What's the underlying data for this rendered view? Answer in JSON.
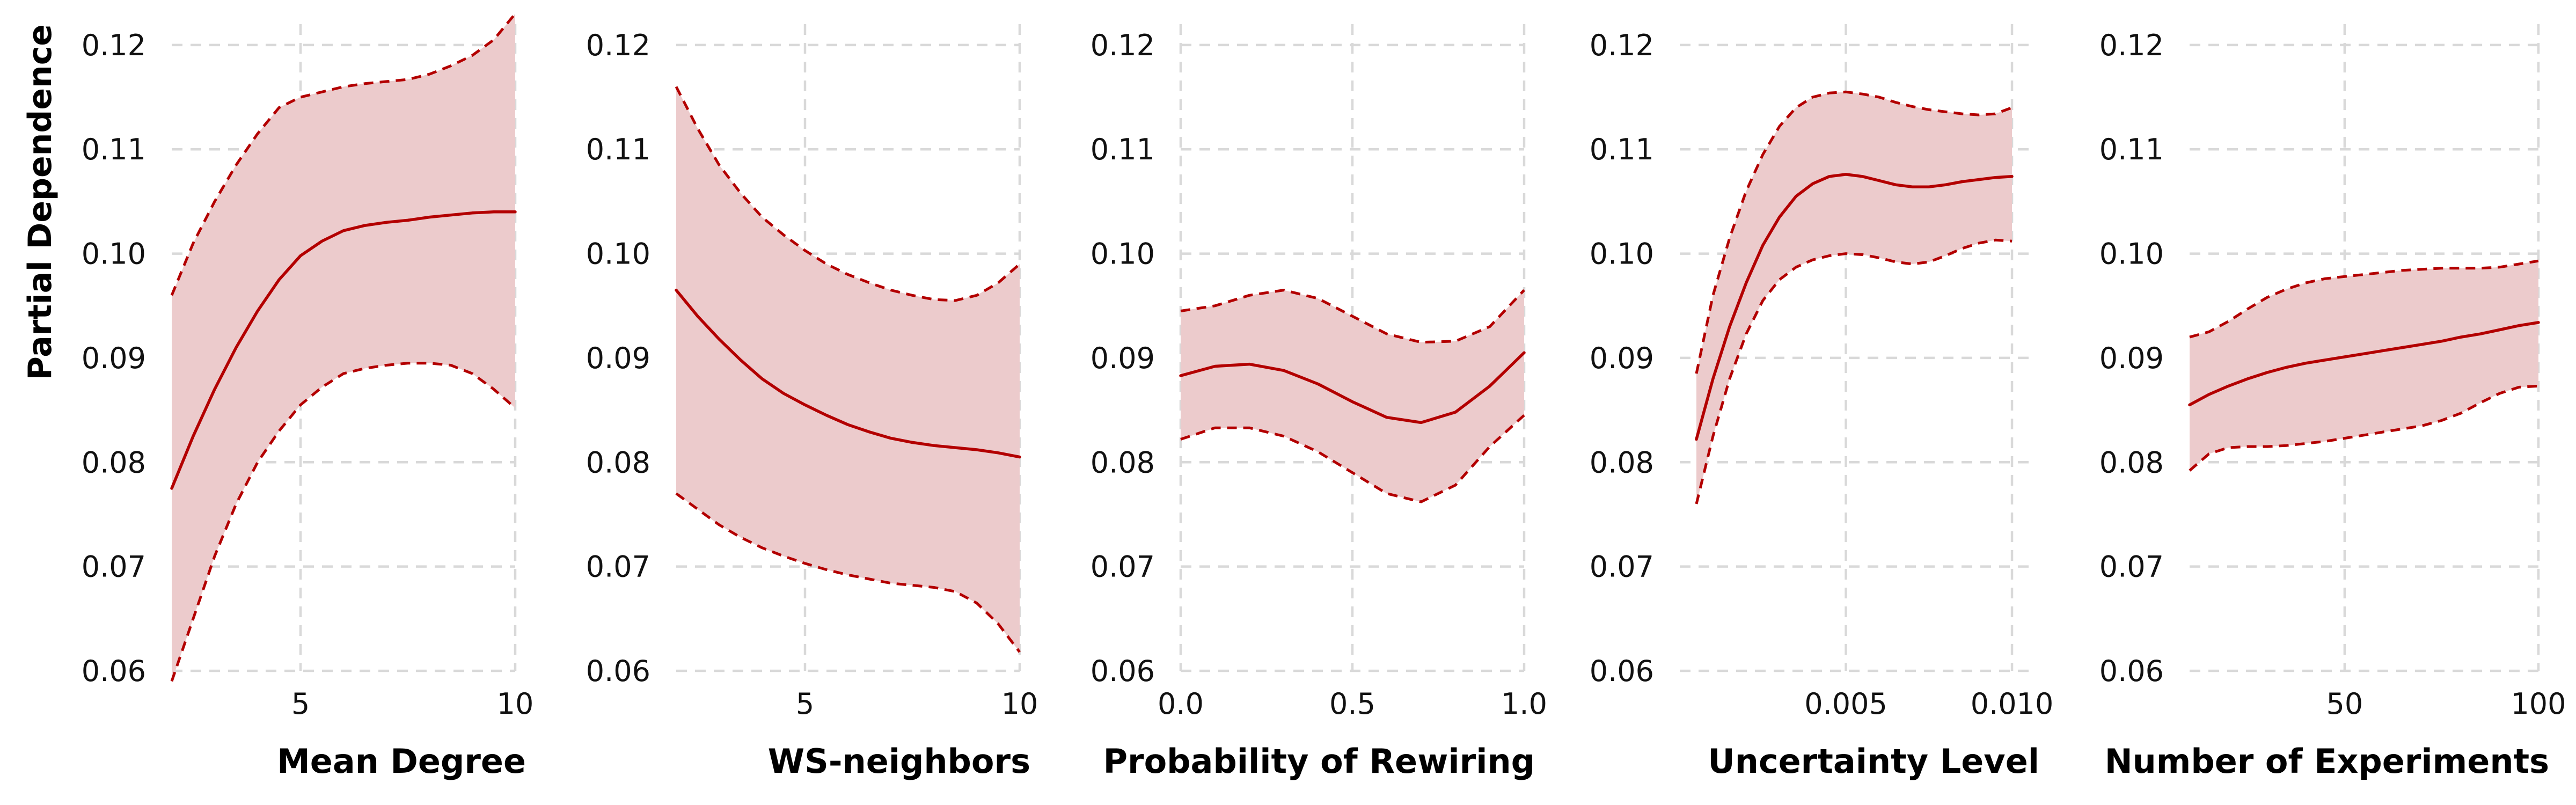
{
  "chart_data": [
    {
      "type": "line",
      "xlabel": "Mean Degree",
      "ylabel": "Partial Dependence",
      "xlim": [
        2,
        10
      ],
      "ylim": [
        0.06,
        0.122
      ],
      "xticks": [
        5,
        10
      ],
      "xtick_labels": [
        "5",
        "10"
      ],
      "yticks": [
        0.06,
        0.07,
        0.08,
        0.09,
        0.1,
        0.11,
        0.12
      ],
      "ytick_labels": [
        "0.06",
        "0.07",
        "0.08",
        "0.09",
        "0.10",
        "0.11",
        "0.12"
      ],
      "grid": true,
      "x": [
        2.0,
        2.5,
        3.0,
        3.5,
        4.0,
        4.5,
        5.0,
        5.5,
        6.0,
        6.5,
        7.0,
        7.5,
        8.0,
        8.5,
        9.0,
        9.5,
        10.0
      ],
      "mean": [
        0.0775,
        0.0825,
        0.087,
        0.091,
        0.0945,
        0.0975,
        0.0998,
        0.1012,
        0.1022,
        0.1027,
        0.103,
        0.1032,
        0.1035,
        0.1037,
        0.1039,
        0.104,
        0.104
      ],
      "lower": [
        0.059,
        0.065,
        0.071,
        0.076,
        0.08,
        0.083,
        0.0855,
        0.0872,
        0.0885,
        0.089,
        0.0893,
        0.0895,
        0.0895,
        0.0893,
        0.0885,
        0.087,
        0.0852
      ],
      "upper": [
        0.096,
        0.101,
        0.105,
        0.1085,
        0.1115,
        0.114,
        0.115,
        0.1155,
        0.116,
        0.1163,
        0.1165,
        0.1167,
        0.1172,
        0.118,
        0.119,
        0.1205,
        0.123
      ]
    },
    {
      "type": "line",
      "xlabel": "WS-neighbors",
      "ylabel": "",
      "xlim": [
        2,
        10
      ],
      "ylim": [
        0.06,
        0.122
      ],
      "xticks": [
        5,
        10
      ],
      "xtick_labels": [
        "5",
        "10"
      ],
      "yticks": [
        0.06,
        0.07,
        0.08,
        0.09,
        0.1,
        0.11,
        0.12
      ],
      "ytick_labels": [
        "0.06",
        "0.07",
        "0.08",
        "0.09",
        "0.10",
        "0.11",
        "0.12"
      ],
      "grid": true,
      "x": [
        2.0,
        2.5,
        3.0,
        3.5,
        4.0,
        4.5,
        5.0,
        5.5,
        6.0,
        6.5,
        7.0,
        7.5,
        8.0,
        8.5,
        9.0,
        9.5,
        10.0
      ],
      "mean": [
        0.0965,
        0.094,
        0.0918,
        0.0898,
        0.088,
        0.0866,
        0.0855,
        0.0845,
        0.0836,
        0.0829,
        0.0823,
        0.0819,
        0.0816,
        0.0814,
        0.0812,
        0.0809,
        0.0805
      ],
      "lower": [
        0.077,
        0.0755,
        0.074,
        0.0728,
        0.0718,
        0.071,
        0.0703,
        0.0697,
        0.0692,
        0.0688,
        0.0684,
        0.0682,
        0.068,
        0.0676,
        0.0665,
        0.0645,
        0.0618
      ],
      "upper": [
        0.116,
        0.112,
        0.1085,
        0.1058,
        0.1035,
        0.1018,
        0.1003,
        0.099,
        0.098,
        0.0972,
        0.0965,
        0.096,
        0.0956,
        0.0955,
        0.096,
        0.0972,
        0.099
      ]
    },
    {
      "type": "line",
      "xlabel": "Probability of Rewiring",
      "ylabel": "",
      "xlim": [
        0.0,
        1.0
      ],
      "ylim": [
        0.06,
        0.122
      ],
      "xticks": [
        0.0,
        0.5,
        1.0
      ],
      "xtick_labels": [
        "0.0",
        "0.5",
        "1.0"
      ],
      "yticks": [
        0.06,
        0.07,
        0.08,
        0.09,
        0.1,
        0.11,
        0.12
      ],
      "ytick_labels": [
        "0.06",
        "0.07",
        "0.08",
        "0.09",
        "0.10",
        "0.11",
        "0.12"
      ],
      "grid": true,
      "x": [
        0.0,
        0.1,
        0.2,
        0.3,
        0.4,
        0.5,
        0.6,
        0.7,
        0.8,
        0.9,
        1.0
      ],
      "mean": [
        0.0883,
        0.0892,
        0.0894,
        0.0888,
        0.0875,
        0.0858,
        0.0843,
        0.0838,
        0.0848,
        0.0873,
        0.0905
      ],
      "lower": [
        0.0822,
        0.0833,
        0.0833,
        0.0825,
        0.081,
        0.079,
        0.077,
        0.0762,
        0.0778,
        0.0815,
        0.0845
      ],
      "upper": [
        0.0945,
        0.095,
        0.096,
        0.0965,
        0.0957,
        0.094,
        0.0923,
        0.0915,
        0.0916,
        0.093,
        0.0965
      ]
    },
    {
      "type": "line",
      "xlabel": "Uncertainty Level",
      "ylabel": "",
      "xlim": [
        0.0,
        0.0105
      ],
      "ylim": [
        0.06,
        0.122
      ],
      "xticks": [
        0.005,
        0.01
      ],
      "xtick_labels": [
        "0.005",
        "0.010"
      ],
      "yticks": [
        0.06,
        0.07,
        0.08,
        0.09,
        0.1,
        0.11,
        0.12
      ],
      "ytick_labels": [
        "0.06",
        "0.07",
        "0.08",
        "0.09",
        "0.10",
        "0.11",
        "0.12"
      ],
      "grid": true,
      "x": [
        0.0005,
        0.001,
        0.0015,
        0.002,
        0.0025,
        0.003,
        0.0035,
        0.004,
        0.0045,
        0.005,
        0.0055,
        0.006,
        0.0065,
        0.007,
        0.0075,
        0.008,
        0.0085,
        0.009,
        0.0095,
        0.01
      ],
      "mean": [
        0.0822,
        0.088,
        0.093,
        0.0972,
        0.1008,
        0.1035,
        0.1055,
        0.1067,
        0.1074,
        0.1076,
        0.1074,
        0.107,
        0.1066,
        0.1064,
        0.1064,
        0.1066,
        0.1069,
        0.1071,
        0.1073,
        0.1074
      ],
      "lower": [
        0.076,
        0.0825,
        0.088,
        0.0923,
        0.0955,
        0.0975,
        0.0987,
        0.0994,
        0.0998,
        0.1,
        0.0999,
        0.0996,
        0.0992,
        0.099,
        0.0992,
        0.0998,
        0.1005,
        0.101,
        0.1013,
        0.1012
      ],
      "upper": [
        0.0885,
        0.096,
        0.1015,
        0.106,
        0.1095,
        0.1122,
        0.114,
        0.115,
        0.1154,
        0.1155,
        0.1153,
        0.115,
        0.1145,
        0.1141,
        0.1138,
        0.1136,
        0.1134,
        0.1133,
        0.1134,
        0.114
      ]
    },
    {
      "type": "line",
      "xlabel": "Number of Experiments",
      "ylabel": "",
      "xlim": [
        10,
        100
      ],
      "ylim": [
        0.06,
        0.122
      ],
      "xticks": [
        50,
        100
      ],
      "xtick_labels": [
        "50",
        "100"
      ],
      "yticks": [
        0.06,
        0.07,
        0.08,
        0.09,
        0.1,
        0.11,
        0.12
      ],
      "ytick_labels": [
        "0.06",
        "0.07",
        "0.08",
        "0.09",
        "0.10",
        "0.11",
        "0.12"
      ],
      "grid": true,
      "x": [
        10,
        15,
        20,
        25,
        30,
        35,
        40,
        45,
        50,
        55,
        60,
        65,
        70,
        75,
        80,
        85,
        90,
        95,
        100
      ],
      "mean": [
        0.0855,
        0.0865,
        0.0873,
        0.088,
        0.0886,
        0.0891,
        0.0895,
        0.0898,
        0.0901,
        0.0904,
        0.0907,
        0.091,
        0.0913,
        0.0916,
        0.092,
        0.0923,
        0.0927,
        0.0931,
        0.0934
      ],
      "lower": [
        0.0792,
        0.0808,
        0.0814,
        0.0815,
        0.0815,
        0.0816,
        0.0818,
        0.082,
        0.0823,
        0.0826,
        0.0829,
        0.0832,
        0.0835,
        0.084,
        0.0847,
        0.0857,
        0.0866,
        0.0872,
        0.0873
      ],
      "upper": [
        0.092,
        0.0925,
        0.0935,
        0.0947,
        0.0958,
        0.0966,
        0.0972,
        0.0976,
        0.0978,
        0.098,
        0.0982,
        0.0984,
        0.0985,
        0.0986,
        0.0986,
        0.0986,
        0.0987,
        0.099,
        0.0993
      ]
    }
  ],
  "colors": {
    "line": "#b30000",
    "band": "#eccbcc",
    "grid": "#d9d9d9",
    "text": "#111111"
  }
}
